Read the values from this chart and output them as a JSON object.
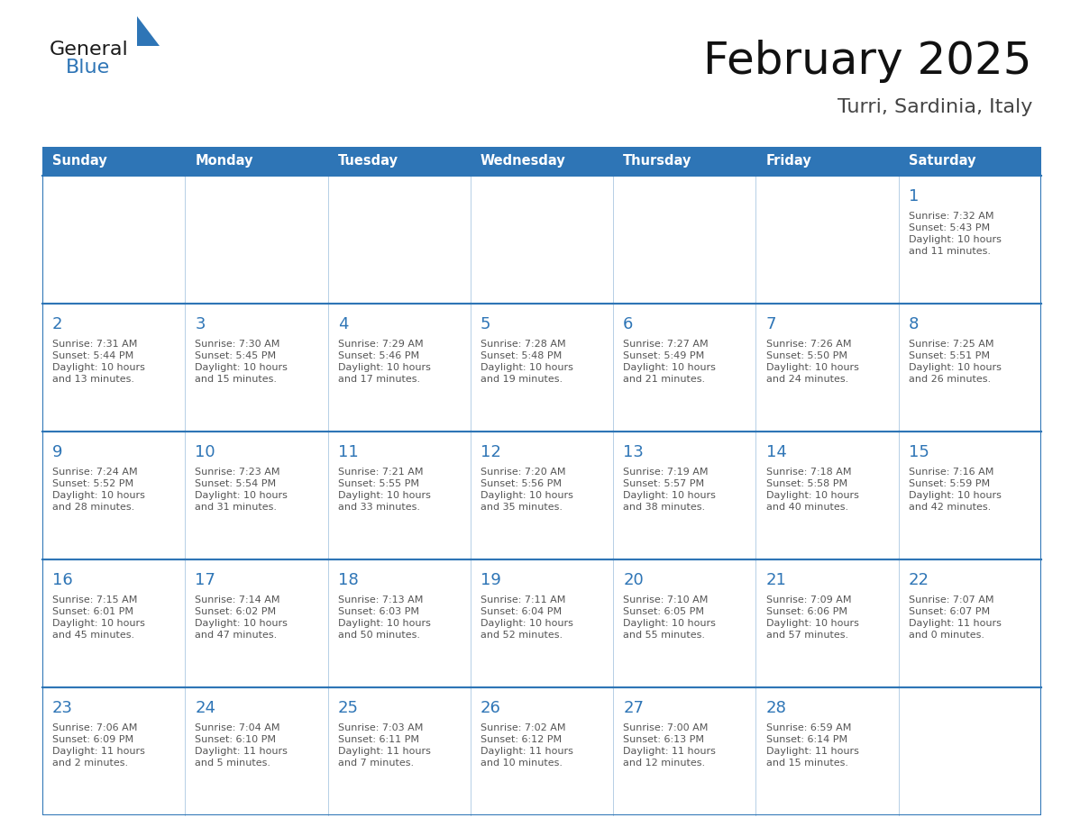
{
  "title": "February 2025",
  "subtitle": "Turri, Sardinia, Italy",
  "header_bg": "#2E75B6",
  "header_text_color": "#FFFFFF",
  "cell_bg": "#FFFFFF",
  "border_color": "#2E75B6",
  "day_number_color": "#2E75B6",
  "info_text_color": "#555555",
  "days_of_week": [
    "Sunday",
    "Monday",
    "Tuesday",
    "Wednesday",
    "Thursday",
    "Friday",
    "Saturday"
  ],
  "calendar_data": [
    [
      null,
      null,
      null,
      null,
      null,
      null,
      {
        "day": "1",
        "sunrise": "7:32 AM",
        "sunset": "5:43 PM",
        "daylight": "10 hours\nand 11 minutes."
      }
    ],
    [
      {
        "day": "2",
        "sunrise": "7:31 AM",
        "sunset": "5:44 PM",
        "daylight": "10 hours\nand 13 minutes."
      },
      {
        "day": "3",
        "sunrise": "7:30 AM",
        "sunset": "5:45 PM",
        "daylight": "10 hours\nand 15 minutes."
      },
      {
        "day": "4",
        "sunrise": "7:29 AM",
        "sunset": "5:46 PM",
        "daylight": "10 hours\nand 17 minutes."
      },
      {
        "day": "5",
        "sunrise": "7:28 AM",
        "sunset": "5:48 PM",
        "daylight": "10 hours\nand 19 minutes."
      },
      {
        "day": "6",
        "sunrise": "7:27 AM",
        "sunset": "5:49 PM",
        "daylight": "10 hours\nand 21 minutes."
      },
      {
        "day": "7",
        "sunrise": "7:26 AM",
        "sunset": "5:50 PM",
        "daylight": "10 hours\nand 24 minutes."
      },
      {
        "day": "8",
        "sunrise": "7:25 AM",
        "sunset": "5:51 PM",
        "daylight": "10 hours\nand 26 minutes."
      }
    ],
    [
      {
        "day": "9",
        "sunrise": "7:24 AM",
        "sunset": "5:52 PM",
        "daylight": "10 hours\nand 28 minutes."
      },
      {
        "day": "10",
        "sunrise": "7:23 AM",
        "sunset": "5:54 PM",
        "daylight": "10 hours\nand 31 minutes."
      },
      {
        "day": "11",
        "sunrise": "7:21 AM",
        "sunset": "5:55 PM",
        "daylight": "10 hours\nand 33 minutes."
      },
      {
        "day": "12",
        "sunrise": "7:20 AM",
        "sunset": "5:56 PM",
        "daylight": "10 hours\nand 35 minutes."
      },
      {
        "day": "13",
        "sunrise": "7:19 AM",
        "sunset": "5:57 PM",
        "daylight": "10 hours\nand 38 minutes."
      },
      {
        "day": "14",
        "sunrise": "7:18 AM",
        "sunset": "5:58 PM",
        "daylight": "10 hours\nand 40 minutes."
      },
      {
        "day": "15",
        "sunrise": "7:16 AM",
        "sunset": "5:59 PM",
        "daylight": "10 hours\nand 42 minutes."
      }
    ],
    [
      {
        "day": "16",
        "sunrise": "7:15 AM",
        "sunset": "6:01 PM",
        "daylight": "10 hours\nand 45 minutes."
      },
      {
        "day": "17",
        "sunrise": "7:14 AM",
        "sunset": "6:02 PM",
        "daylight": "10 hours\nand 47 minutes."
      },
      {
        "day": "18",
        "sunrise": "7:13 AM",
        "sunset": "6:03 PM",
        "daylight": "10 hours\nand 50 minutes."
      },
      {
        "day": "19",
        "sunrise": "7:11 AM",
        "sunset": "6:04 PM",
        "daylight": "10 hours\nand 52 minutes."
      },
      {
        "day": "20",
        "sunrise": "7:10 AM",
        "sunset": "6:05 PM",
        "daylight": "10 hours\nand 55 minutes."
      },
      {
        "day": "21",
        "sunrise": "7:09 AM",
        "sunset": "6:06 PM",
        "daylight": "10 hours\nand 57 minutes."
      },
      {
        "day": "22",
        "sunrise": "7:07 AM",
        "sunset": "6:07 PM",
        "daylight": "11 hours\nand 0 minutes."
      }
    ],
    [
      {
        "day": "23",
        "sunrise": "7:06 AM",
        "sunset": "6:09 PM",
        "daylight": "11 hours\nand 2 minutes."
      },
      {
        "day": "24",
        "sunrise": "7:04 AM",
        "sunset": "6:10 PM",
        "daylight": "11 hours\nand 5 minutes."
      },
      {
        "day": "25",
        "sunrise": "7:03 AM",
        "sunset": "6:11 PM",
        "daylight": "11 hours\nand 7 minutes."
      },
      {
        "day": "26",
        "sunrise": "7:02 AM",
        "sunset": "6:12 PM",
        "daylight": "11 hours\nand 10 minutes."
      },
      {
        "day": "27",
        "sunrise": "7:00 AM",
        "sunset": "6:13 PM",
        "daylight": "11 hours\nand 12 minutes."
      },
      {
        "day": "28",
        "sunrise": "6:59 AM",
        "sunset": "6:14 PM",
        "daylight": "11 hours\nand 15 minutes."
      },
      null
    ]
  ],
  "logo_general_color": "#1a1a1a",
  "logo_blue_color": "#2E75B6",
  "fig_width": 11.88,
  "fig_height": 9.18,
  "dpi": 100
}
